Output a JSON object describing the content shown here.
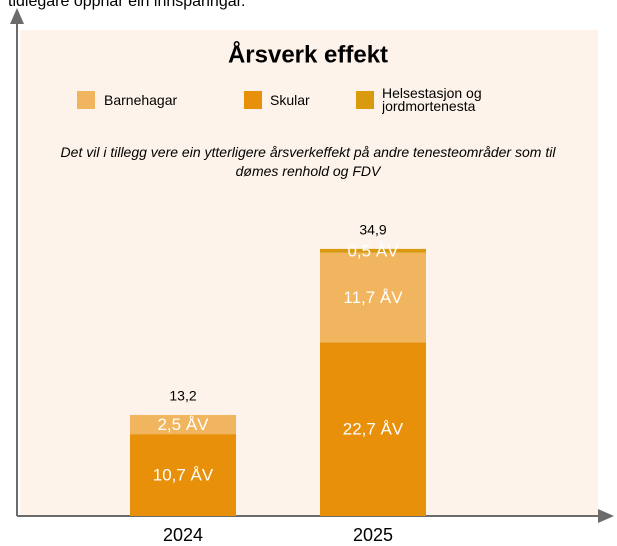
{
  "chart_data": {
    "type": "stacked_bar",
    "header_text": "tidlegare oppnår ein innsparingar.",
    "title": "Årsverk effekt",
    "subtitle": "Det vil i tillegg vere ein ytterligere årsverkeffekt på andre tenesteområder som til dømes renhold og FDV",
    "categories": [
      "2024",
      "2025"
    ],
    "series": [
      {
        "name": "Skular",
        "color": "#e8900a",
        "values": [
          10.7,
          22.7
        ],
        "value_labels": [
          "10,7 ÅV",
          "22,7 ÅV"
        ]
      },
      {
        "name": "Barnehagar",
        "color": "#f0b55e",
        "values": [
          2.5,
          11.7
        ],
        "value_labels": [
          "2,5 ÅV",
          "11,7 ÅV"
        ]
      },
      {
        "name": "Helsestasjon og jordmortenesta",
        "color": "#d99a10",
        "values": [
          null,
          0.5
        ],
        "value_labels": [
          null,
          "0,5 ÅV"
        ]
      }
    ],
    "legend_order": [
      1,
      0,
      2
    ],
    "total_labels": [
      "13,2",
      "34,9"
    ],
    "ylim": [
      0,
      63.5
    ]
  }
}
